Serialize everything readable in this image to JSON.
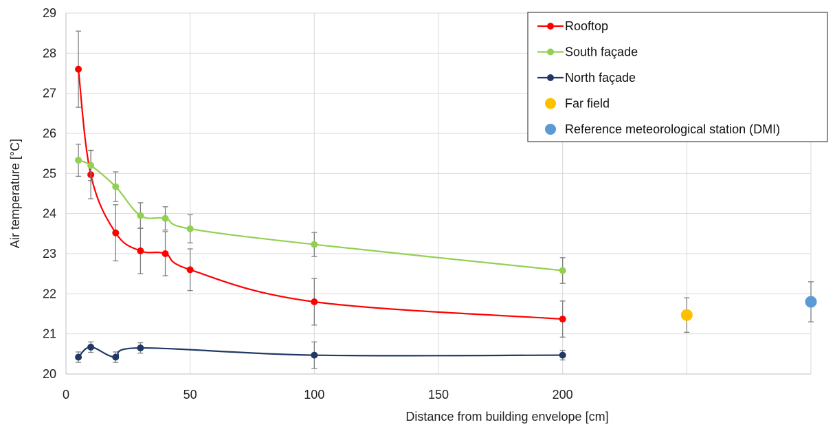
{
  "chart_data": {
    "type": "line",
    "xlabel": "Distance from building envelope [cm]",
    "ylabel": "Air temperature [°C]",
    "xlim": [
      0,
      300
    ],
    "ylim": [
      20,
      29
    ],
    "x_ticks": [
      {
        "value": 0,
        "label": "0"
      },
      {
        "value": 50,
        "label": "50"
      },
      {
        "value": 100,
        "label": "100"
      },
      {
        "value": 150,
        "label": "150"
      },
      {
        "value": 200,
        "label": "200"
      }
    ],
    "x_gridlines": [
      0,
      50,
      100,
      150,
      200,
      250,
      300
    ],
    "y_ticks": [
      20,
      21,
      22,
      23,
      24,
      25,
      26,
      27,
      28,
      29
    ],
    "grid": true,
    "legend_position": "top-right",
    "series": [
      {
        "name": "Rooftop",
        "color": "#ff0000",
        "style": "smooth-line-markers",
        "points": [
          {
            "x": 5,
            "y": 27.6,
            "err": 0.95
          },
          {
            "x": 10,
            "y": 24.97,
            "err": 0.6
          },
          {
            "x": 20,
            "y": 23.52,
            "err": 0.7
          },
          {
            "x": 30,
            "y": 23.07,
            "err": 0.57
          },
          {
            "x": 40,
            "y": 23.0,
            "err": 0.55
          },
          {
            "x": 50,
            "y": 22.6,
            "err": 0.52
          },
          {
            "x": 100,
            "y": 21.8,
            "err": 0.58
          },
          {
            "x": 200,
            "y": 21.37,
            "err": 0.45
          }
        ]
      },
      {
        "name": "South façade",
        "color": "#92d050",
        "style": "smooth-line-markers",
        "points": [
          {
            "x": 5,
            "y": 25.33,
            "err": 0.4
          },
          {
            "x": 10,
            "y": 25.2,
            "err": 0.38
          },
          {
            "x": 20,
            "y": 24.67,
            "err": 0.37
          },
          {
            "x": 30,
            "y": 23.95,
            "err": 0.32
          },
          {
            "x": 40,
            "y": 23.88,
            "err": 0.29
          },
          {
            "x": 50,
            "y": 23.62,
            "err": 0.35
          },
          {
            "x": 100,
            "y": 23.23,
            "err": 0.3
          },
          {
            "x": 200,
            "y": 22.58,
            "err": 0.32
          }
        ]
      },
      {
        "name": "North façade",
        "color": "#1f3864",
        "style": "smooth-line-markers",
        "points": [
          {
            "x": 5,
            "y": 20.42,
            "err": 0.13
          },
          {
            "x": 10,
            "y": 20.67,
            "err": 0.13
          },
          {
            "x": 20,
            "y": 20.42,
            "err": 0.13
          },
          {
            "x": 30,
            "y": 20.65,
            "err": 0.13
          },
          {
            "x": 100,
            "y": 20.47,
            "err": 0.33
          },
          {
            "x": 200,
            "y": 20.47,
            "err": 0.12
          }
        ]
      },
      {
        "name": "Far field",
        "color": "#ffc000",
        "style": "marker-only",
        "points": [
          {
            "x": 250,
            "y": 21.47,
            "err": 0.43
          }
        ]
      },
      {
        "name": "Reference meteorological station (DMI)",
        "color": "#5b9bd5",
        "style": "marker-only",
        "points": [
          {
            "x": 300,
            "y": 21.8,
            "err": 0.5
          }
        ]
      }
    ]
  }
}
